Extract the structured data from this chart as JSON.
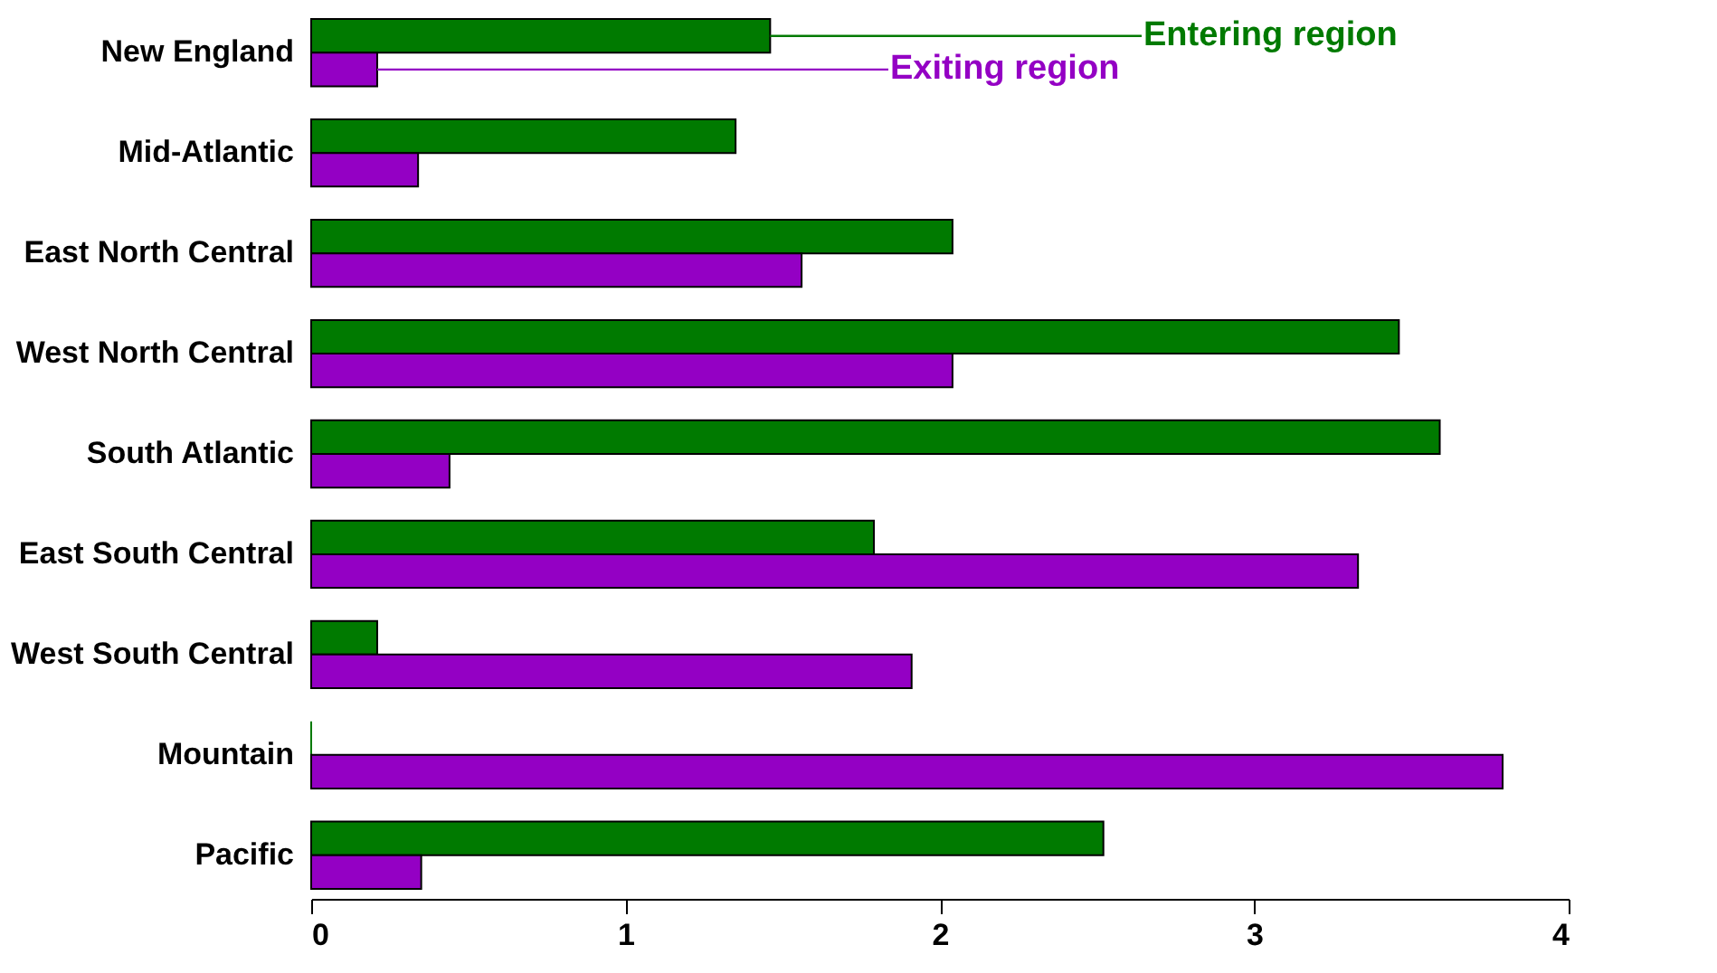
{
  "chart_data": {
    "type": "bar",
    "orientation": "horizontal",
    "categories": [
      "New England",
      "Mid-Atlantic",
      "East North Central",
      "West North Central",
      "South Atlantic",
      "East South Central",
      "West South Central",
      "Mountain",
      "Pacific"
    ],
    "series": [
      {
        "name": "Entering region",
        "color": "#007a00",
        "values": [
          1.46,
          1.35,
          2.04,
          3.46,
          3.59,
          1.79,
          0.21,
          0,
          2.52
        ]
      },
      {
        "name": "Exiting region",
        "color": "#9400c4",
        "values": [
          0.21,
          0.34,
          1.56,
          2.04,
          0.44,
          3.33,
          1.91,
          3.79,
          0.35
        ]
      }
    ],
    "xlim": [
      0,
      4
    ],
    "xticks": [
      0,
      1,
      2,
      3,
      4
    ],
    "grid": false,
    "legend": false
  }
}
